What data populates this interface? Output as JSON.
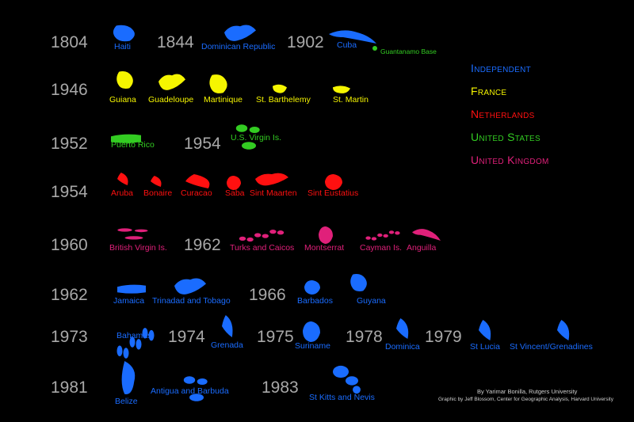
{
  "colors": {
    "independent": "#1a6cff",
    "france": "#f5f500",
    "netherlands": "#ff1010",
    "united_states": "#33cc22",
    "united_kingdom": "#e0207a",
    "year": "#a8a8a8",
    "background": "#000000"
  },
  "legend": [
    {
      "label": "Independent",
      "group": "independent"
    },
    {
      "label": "France",
      "group": "france"
    },
    {
      "label": "Netherlands",
      "group": "netherlands"
    },
    {
      "label": "United States",
      "group": "united_states"
    },
    {
      "label": "United Kingdom",
      "group": "united_kingdom"
    }
  ],
  "years": [
    "1804",
    "1844",
    "1902",
    "1946",
    "1952",
    "1954",
    "1954",
    "1960",
    "1962",
    "1962",
    "1966",
    "1973",
    "1974",
    "1975",
    "1978",
    "1979",
    "1981",
    "1983"
  ],
  "islands": [
    {
      "name": "Haiti",
      "group": "independent",
      "shape": "blob-a"
    },
    {
      "name": "Dominican Republic",
      "group": "independent",
      "shape": "blob-b"
    },
    {
      "name": "Cuba",
      "group": "independent",
      "shape": "long"
    },
    {
      "name": "Guantanamo Base",
      "group": "united_states",
      "shape": "dot"
    },
    {
      "name": "Guiana",
      "group": "france",
      "shape": "blob-a"
    },
    {
      "name": "Guadeloupe",
      "group": "france",
      "shape": "blob-b"
    },
    {
      "name": "Martinique",
      "group": "france",
      "shape": "blob-a"
    },
    {
      "name": "St. Barthelemy",
      "group": "france",
      "shape": "small"
    },
    {
      "name": "St. Martin",
      "group": "france",
      "shape": "small"
    },
    {
      "name": "Puerto Rico",
      "group": "united_states",
      "shape": "flat"
    },
    {
      "name": "U.S. Virgin Is.",
      "group": "united_states",
      "shape": "cluster"
    },
    {
      "name": "Aruba",
      "group": "netherlands",
      "shape": "thin"
    },
    {
      "name": "Bonaire",
      "group": "netherlands",
      "shape": "thin"
    },
    {
      "name": "Curacao",
      "group": "netherlands",
      "shape": "thin"
    },
    {
      "name": "Saba",
      "group": "netherlands",
      "shape": "round"
    },
    {
      "name": "Sint Maarten",
      "group": "netherlands",
      "shape": "blob-b"
    },
    {
      "name": "Sint Eustatius",
      "group": "netherlands",
      "shape": "round"
    },
    {
      "name": "British Virgin Is.",
      "group": "united_kingdom",
      "shape": "cluster"
    },
    {
      "name": "Turks and Caicos",
      "group": "united_kingdom",
      "shape": "scatter"
    },
    {
      "name": "Montserrat",
      "group": "united_kingdom",
      "shape": "round"
    },
    {
      "name": "Cayman Is.",
      "group": "united_kingdom",
      "shape": "scatter"
    },
    {
      "name": "Anguilla",
      "group": "united_kingdom",
      "shape": "long"
    },
    {
      "name": "Jamaica",
      "group": "independent",
      "shape": "flat"
    },
    {
      "name": "Trinadad and Tobago",
      "group": "independent",
      "shape": "blob-b"
    },
    {
      "name": "Barbados",
      "group": "independent",
      "shape": "round"
    },
    {
      "name": "Guyana",
      "group": "independent",
      "shape": "blob-a"
    },
    {
      "name": "Bahamas",
      "group": "independent",
      "shape": "scatter"
    },
    {
      "name": "Grenada",
      "group": "independent",
      "shape": "thin"
    },
    {
      "name": "Suriname",
      "group": "independent",
      "shape": "round"
    },
    {
      "name": "Dominica",
      "group": "independent",
      "shape": "thin"
    },
    {
      "name": "St Lucia",
      "group": "independent",
      "shape": "thin"
    },
    {
      "name": "St Vincent/Grenadines",
      "group": "independent",
      "shape": "thin"
    },
    {
      "name": "Belize",
      "group": "independent",
      "shape": "tall"
    },
    {
      "name": "Antigua and Barbuda",
      "group": "independent",
      "shape": "cluster"
    },
    {
      "name": "St Kitts and Nevis",
      "group": "independent",
      "shape": "chain"
    }
  ],
  "credits": {
    "author": "By Yarimar Bonilla, Rutgers University",
    "graphic": "Graphic by Jeff Blossom, Center for Geographic Analysis, Harvard University"
  }
}
